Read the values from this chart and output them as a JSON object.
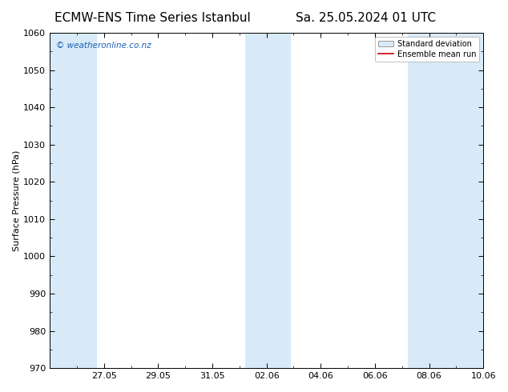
{
  "title_left": "ECMW-ENS Time Series Istanbul",
  "title_right": "Sa. 25.05.2024 01 UTC",
  "ylabel": "Surface Pressure (hPa)",
  "ylim": [
    970,
    1060
  ],
  "yticks": [
    970,
    980,
    990,
    1000,
    1010,
    1020,
    1030,
    1040,
    1050,
    1060
  ],
  "xtick_labels": [
    "27.05",
    "29.05",
    "31.05",
    "02.06",
    "04.06",
    "06.06",
    "08.06",
    "10.06"
  ],
  "watermark": "© weatheronline.co.nz",
  "watermark_color": "#1a5fb4",
  "background_color": "#ffffff",
  "plot_bg_color": "#ffffff",
  "shaded_band_color": "#d8eaf7",
  "legend_std_label": "Standard deviation",
  "legend_mean_label": "Ensemble mean run",
  "legend_mean_color": "#cc0000",
  "legend_std_facecolor": "#d8eaf7",
  "legend_std_edgecolor": "#999999",
  "title_fontsize": 11,
  "axis_label_fontsize": 8,
  "tick_fontsize": 8
}
